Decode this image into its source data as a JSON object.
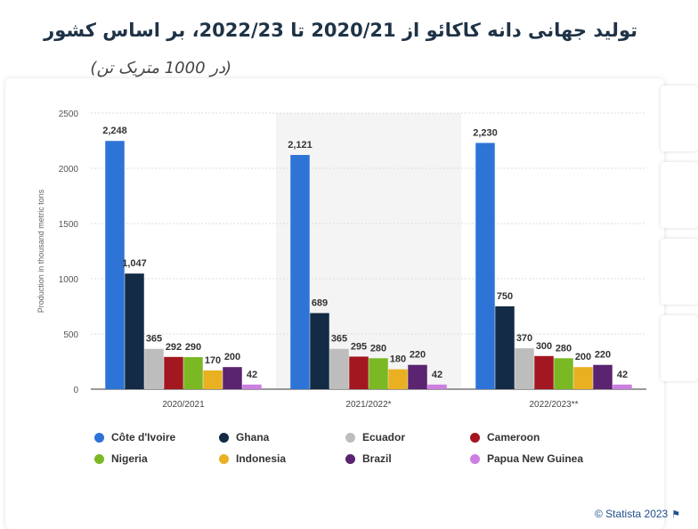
{
  "header": {
    "title": "تولید جهانی دانه کاکائو از 2020/21 تا 2022/23، بر اساس کشور",
    "subtitle": "(در 1000 متریک تن)"
  },
  "footer": {
    "credit": "© Statista 2023"
  },
  "colors": {
    "Côte d'Ivoire": "#2e74d6",
    "Ghana": "#132b44",
    "Ecuador": "#bdbdbd",
    "Cameroon": "#a31720",
    "Nigeria": "#7ab824",
    "Indonesia": "#e9b021",
    "Brazil": "#5a2470",
    "Papua New Guinea": "#cc7fe0"
  },
  "chart_data": {
    "type": "bar",
    "ylabel": "Production in thousand metric tons",
    "ylim": [
      0,
      2500
    ],
    "yticks": [
      0,
      500,
      1000,
      1500,
      2000,
      2500
    ],
    "grid": true,
    "legend": "bottom",
    "categories": [
      "2020/2021",
      "2021/2022*",
      "2022/2023**"
    ],
    "series": [
      {
        "name": "Côte d'Ivoire",
        "values": [
          2248,
          2121,
          2230
        ],
        "labels": [
          "2,248",
          "2,121",
          "2,230"
        ]
      },
      {
        "name": "Ghana",
        "values": [
          1047,
          689,
          750
        ],
        "labels": [
          "1,047",
          "689",
          "750"
        ]
      },
      {
        "name": "Ecuador",
        "values": [
          365,
          365,
          370
        ],
        "labels": [
          "365",
          "365",
          "370"
        ]
      },
      {
        "name": "Cameroon",
        "values": [
          292,
          295,
          300
        ],
        "labels": [
          "292",
          "295",
          "300"
        ]
      },
      {
        "name": "Nigeria",
        "values": [
          290,
          280,
          280
        ],
        "labels": [
          "290",
          "280",
          "280"
        ]
      },
      {
        "name": "Indonesia",
        "values": [
          170,
          180,
          200
        ],
        "labels": [
          "170",
          "180",
          "200"
        ]
      },
      {
        "name": "Brazil",
        "values": [
          200,
          220,
          220
        ],
        "labels": [
          "200",
          "220",
          "220"
        ]
      },
      {
        "name": "Papua New Guinea",
        "values": [
          42,
          42,
          42
        ],
        "labels": [
          "42",
          "42",
          "42"
        ]
      }
    ]
  }
}
